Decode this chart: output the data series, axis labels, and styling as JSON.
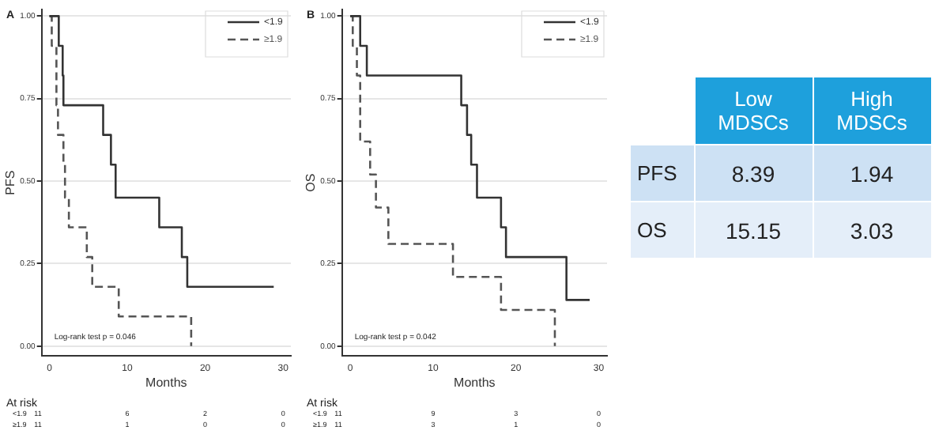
{
  "chart_data": [
    {
      "type": "step",
      "title": "A",
      "xlabel": "Months",
      "ylabel": "PFS",
      "xlim": [
        -1,
        31
      ],
      "xticks": [
        0,
        10,
        20,
        30
      ],
      "ylim": [
        -0.03,
        1.02
      ],
      "yticks": [
        {
          "value": 0,
          "label": "0.00"
        },
        {
          "value": 0.25,
          "label": "0.25"
        },
        {
          "value": 0.5,
          "label": "0.50"
        },
        {
          "value": 0.75,
          "label": "0.75"
        },
        {
          "value": 1,
          "label": "1.00"
        }
      ],
      "grid": "y",
      "legend": "top right",
      "marker": "none",
      "series": [
        {
          "name": "<1.9",
          "color": "#333333",
          "line_style": "solid",
          "x": [
            0,
            1.2,
            1.7,
            1.8,
            6.9,
            7.9,
            8.5,
            14.1,
            17.0,
            17.7,
            28.8
          ],
          "values": [
            1,
            0.91,
            0.82,
            0.73,
            0.64,
            0.55,
            0.45,
            0.36,
            0.27,
            0.18,
            0.18
          ]
        },
        {
          "name": "≥1.9",
          "color": "#555555",
          "line_style": "dashed",
          "x": [
            0,
            0.3,
            0.9,
            1.1,
            1.8,
            2.0,
            2.5,
            4.8,
            5.5,
            8.9,
            18.2
          ],
          "values": [
            1,
            0.91,
            0.73,
            0.64,
            0.55,
            0.45,
            0.36,
            0.27,
            0.18,
            0.09,
            0
          ]
        }
      ],
      "annotations": [
        "Log-rank test p = 0.046",
        "At risk",
        "<1.9 11 6 2 0",
        "≥1.9 11 1 0 0"
      ]
    },
    {
      "type": "step",
      "title": "B",
      "xlabel": "Months",
      "ylabel": "OS",
      "xlim": [
        -1,
        31
      ],
      "xticks": [
        0,
        10,
        20,
        30
      ],
      "ylim": [
        -0.03,
        1.02
      ],
      "yticks": [
        {
          "value": 0,
          "label": "0.00"
        },
        {
          "value": 0.25,
          "label": "0.25"
        },
        {
          "value": 0.5,
          "label": "0.50"
        },
        {
          "value": 0.75,
          "label": "0.75"
        },
        {
          "value": 1,
          "label": "1.00"
        }
      ],
      "grid": "y",
      "legend": "top right",
      "marker": "none",
      "series": [
        {
          "name": "<1.9",
          "color": "#333333",
          "line_style": "solid",
          "x": [
            0,
            1.2,
            2.0,
            13.4,
            14.1,
            14.6,
            15.3,
            18.2,
            18.8,
            26.1,
            28.9
          ],
          "values": [
            1,
            0.91,
            0.82,
            0.73,
            0.64,
            0.55,
            0.45,
            0.36,
            0.27,
            0.14,
            0.14
          ]
        },
        {
          "name": "≥1.9",
          "color": "#555555",
          "line_style": "dashed",
          "x": [
            0,
            0.3,
            0.8,
            1.2,
            2.4,
            3.1,
            4.6,
            12.4,
            18.2,
            24.7
          ],
          "values": [
            1,
            0.91,
            0.82,
            0.62,
            0.52,
            0.42,
            0.31,
            0.21,
            0.11,
            0
          ]
        }
      ],
      "annotations": [
        "Log-rank test p = 0.042",
        "At risk",
        "<1.9 11 9 3 0",
        "≥1.9 11 3 1 0"
      ]
    },
    {
      "type": "other",
      "categories": [
        "Low MDSCs",
        "High MDSCs"
      ],
      "y_categories": [
        "PFS",
        "OS"
      ],
      "cell_labels": [
        [
          "8.39",
          "1.94"
        ],
        [
          "15.15",
          "3.03"
        ]
      ]
    }
  ]
}
